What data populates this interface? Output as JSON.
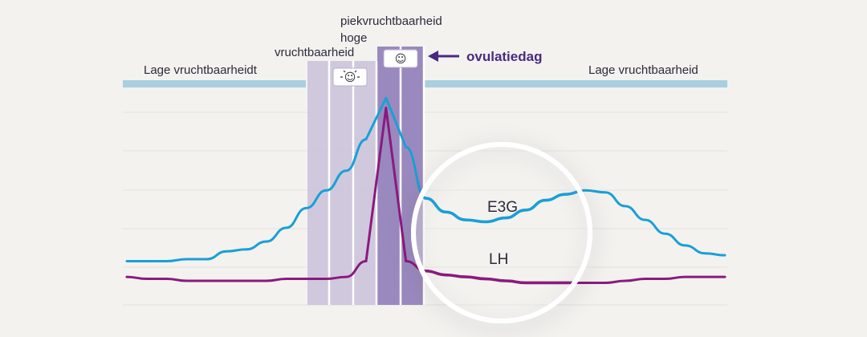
{
  "chart_data": {
    "type": "line",
    "x": [
      0,
      1,
      2,
      3,
      4,
      5,
      6,
      7,
      8,
      9,
      10,
      11,
      12,
      13,
      14,
      15,
      16,
      17,
      18,
      19,
      20,
      21,
      22,
      23,
      24,
      25,
      26,
      27,
      28,
      29,
      30
    ],
    "series": [
      {
        "name": "E3G",
        "color": "#1a9fd6",
        "values": [
          0.1,
          0.1,
          0.1,
          0.11,
          0.11,
          0.15,
          0.16,
          0.2,
          0.27,
          0.37,
          0.46,
          0.56,
          0.72,
          0.93,
          0.68,
          0.42,
          0.35,
          0.31,
          0.3,
          0.32,
          0.36,
          0.41,
          0.44,
          0.46,
          0.45,
          0.38,
          0.31,
          0.24,
          0.18,
          0.14,
          0.13
        ]
      },
      {
        "name": "LH",
        "color": "#8a1a7e",
        "values": [
          0.02,
          0.01,
          0.01,
          0.0,
          0.0,
          0.0,
          0.0,
          0.0,
          0.01,
          0.01,
          0.01,
          0.02,
          0.1,
          0.88,
          0.1,
          0.05,
          0.03,
          0.02,
          0.01,
          0.0,
          -0.01,
          -0.01,
          -0.01,
          -0.01,
          -0.01,
          0.0,
          0.01,
          0.01,
          0.02,
          0.02,
          0.02
        ]
      }
    ],
    "zones": [
      {
        "label": "Lage vruchtbaarheidt",
        "start": 0,
        "end": 9
      },
      {
        "label": "vruchtbaarheid",
        "start": 9,
        "end": 12,
        "icon": "bright-smiley-icon"
      },
      {
        "label_line1": "piekvruchtbaarheid",
        "label_line2": "hoge",
        "start": 12,
        "end": 14,
        "icon": "smiley-icon"
      },
      {
        "label": "Lage vruchtbaarheid",
        "start": 14,
        "end": 30
      }
    ],
    "annotation": {
      "text": "ovulatiedag",
      "color": "#4a2a80",
      "points_to": "peak-zone"
    },
    "grid": true,
    "legend": "inline-labels"
  },
  "icons": {
    "bright_smiley": "☺",
    "smiley": "☺"
  }
}
